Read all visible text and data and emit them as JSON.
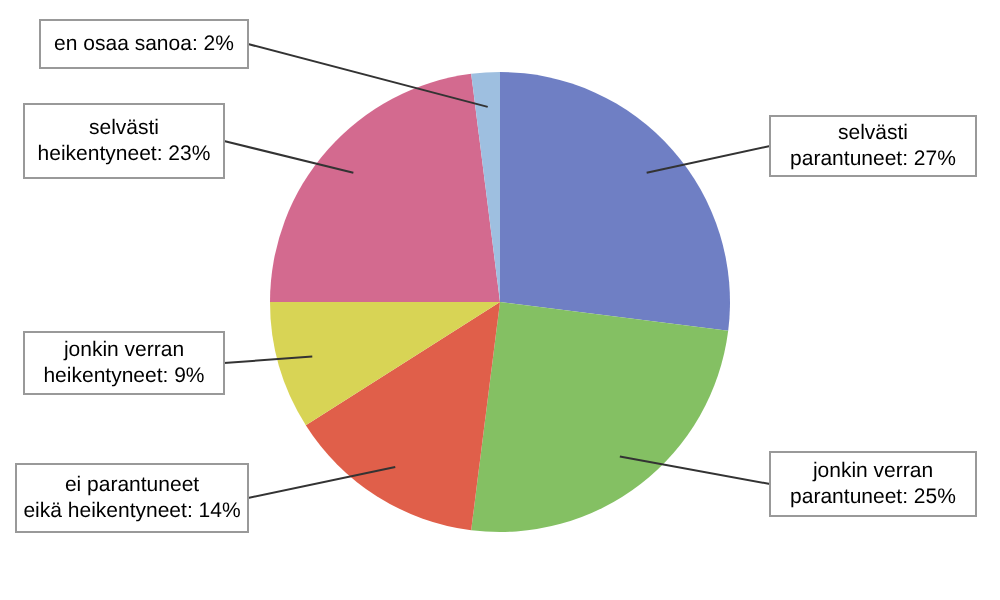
{
  "chart_data": {
    "type": "pie",
    "categories": [
      "selvästi parantuneet",
      "jonkin verran parantuneet",
      "ei parantuneet eikä heikentyneet",
      "jonkin verran heikentyneet",
      "selvästi heikentyneet",
      "en osaa sanoa"
    ],
    "values": [
      27,
      25,
      14,
      9,
      23,
      2
    ],
    "value_labels": [
      "27%",
      "25%",
      "14%",
      "9%",
      "23%",
      "2%"
    ],
    "colors": [
      "#6f7fc4",
      "#84c063",
      "#e05f4a",
      "#d8d455",
      "#d36a8f",
      "#9ebfe0"
    ]
  }
}
